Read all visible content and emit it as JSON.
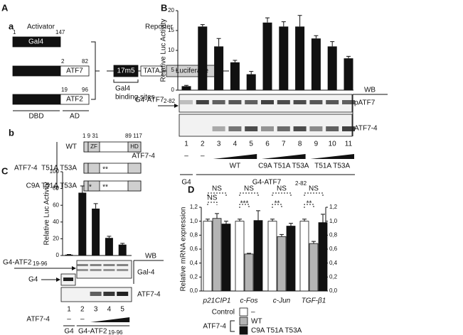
{
  "panel_labels": [
    "A",
    "B",
    "C",
    "D"
  ],
  "panel_a": {
    "label": "a",
    "activator": "Activator",
    "reporter": "Reporter",
    "constructs": [
      {
        "name": "Gal4",
        "start": "1",
        "end": "147"
      },
      {
        "name": "ATF7",
        "start": "2",
        "end": "82"
      },
      {
        "name": "ATF2",
        "start": "19",
        "end": "96"
      }
    ],
    "dbd": "DBD",
    "ad": "AD",
    "reporter_parts": [
      "17m5",
      "TATA",
      "Luciferase"
    ],
    "binding_sites": [
      "Gal4",
      "binding sites"
    ]
  },
  "panel_b": {
    "label": "b",
    "group": "ATF7-4",
    "positions": [
      "1 9 31",
      "89 117"
    ],
    "rows": [
      "WT",
      "T51A T53A",
      "C9A T51A T53A"
    ],
    "domains": [
      "ZF",
      "HD"
    ],
    "mut_double": "**",
    "mut_single": "*"
  },
  "chart_data": [
    {
      "type": "bar",
      "y_label": "Relative Luc Activity",
      "categories": [
        "1",
        "2",
        "3",
        "4",
        "5",
        "6",
        "7",
        "8",
        "9",
        "10",
        "11"
      ],
      "values": [
        1,
        16,
        11,
        7,
        4,
        17,
        16,
        16,
        13,
        11,
        8
      ],
      "errors": [
        0.2,
        0.5,
        2,
        0.5,
        0.7,
        1.2,
        1.2,
        2.8,
        0.7,
        1.2,
        0.5
      ],
      "color": "#111111",
      "ylim": [
        0,
        20
      ],
      "yticks": [
        0,
        5,
        10,
        15,
        20
      ],
      "arrow_label": "G4-ATF7",
      "arrow_sub": "2-82",
      "wb": "WB",
      "blot_labels": [
        "pATF7",
        "ATF7-4"
      ],
      "treatment": "ATF7-4",
      "dashes": [
        "–",
        "–"
      ],
      "groups": [
        "WT",
        "C9A T51A T53A",
        "T51A T53A"
      ],
      "bottom": [
        "G4",
        "G4-ATF7"
      ],
      "bottom_sub": "2-82"
    },
    {
      "type": "bar",
      "y_label": "Relative Luc Activity",
      "categories": [
        "1",
        "2",
        "3",
        "4",
        "5"
      ],
      "values": [
        1,
        75,
        56,
        21,
        13
      ],
      "errors": [
        0.3,
        8,
        6,
        2,
        1.5
      ],
      "color": "#111111",
      "ylim": [
        0,
        100
      ],
      "yticks": [
        0,
        20,
        40,
        60,
        80,
        100
      ],
      "arrow_labels": [
        "G4-ATF2",
        "G4"
      ],
      "arrow_sub": "19-96",
      "wb": "WB",
      "blot_labels": [
        "Gal-4",
        "ATF7-4"
      ],
      "treatment": "ATF7-4",
      "dashes": [
        "–",
        "–"
      ],
      "bottom": [
        "G4",
        "G4-ATF2"
      ],
      "bottom_sub": "19-96"
    },
    {
      "type": "grouped_bar",
      "y_label": "Relative mRNA expression",
      "categories": [
        "p21CIP1",
        "c-Fos",
        "c-Jun",
        "TGF-β1"
      ],
      "series": [
        {
          "name": "Control",
          "color": "#ffffff",
          "values": [
            1,
            1,
            1,
            1
          ],
          "errors": [
            0.03,
            0.03,
            0.03,
            0.03
          ]
        },
        {
          "name": "WT",
          "color": "#b4b4b4",
          "values": [
            1.04,
            0.53,
            0.78,
            0.68
          ],
          "errors": [
            0.07,
            0.01,
            0.03,
            0.03
          ]
        },
        {
          "name": "C9A T51A T53A",
          "color": "#111111",
          "values": [
            0.96,
            1.01,
            0.93,
            0.98
          ],
          "errors": [
            0.04,
            0.14,
            0.04,
            0.12
          ]
        }
      ],
      "ylim": [
        0,
        1.2
      ],
      "yticks": [
        {
          "value": 0,
          "label": "0,0"
        },
        {
          "value": 0.2,
          "label": "0,2"
        },
        {
          "value": 0.4,
          "label": "0,4"
        },
        {
          "value": 0.6,
          "label": "0,6"
        },
        {
          "value": 0.8,
          "label": "0,8"
        },
        {
          "value": 1,
          "label": "1,0"
        },
        {
          "value": 1.2,
          "label": "1,2"
        }
      ],
      "y2lim": [
        0,
        1.2
      ],
      "y2ticks": [
        {
          "value": 0,
          "label": "0,0"
        },
        {
          "value": 0.2,
          "label": "0,2"
        },
        {
          "value": 0.4,
          "label": "0,4"
        },
        {
          "value": 0.6,
          "label": "0,6"
        },
        {
          "value": 0.8,
          "label": "0,8"
        },
        {
          "value": 1,
          "label": "1,0"
        },
        {
          "value": 1.2,
          "label": "1,2"
        }
      ],
      "ns": [
        "NS",
        "NS",
        "NS",
        "NS",
        "NS"
      ],
      "significance": [
        "***",
        "**",
        "**"
      ],
      "legend_dash": "–",
      "legend_group": "ATF7-4"
    }
  ]
}
